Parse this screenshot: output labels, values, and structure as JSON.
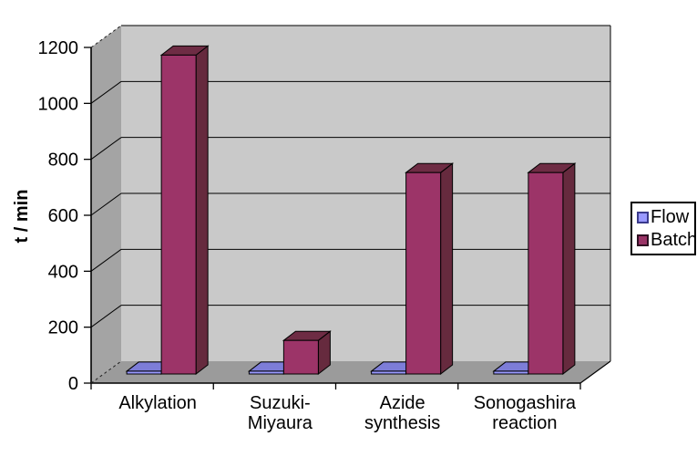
{
  "chart_data": {
    "type": "bar",
    "style": "3d-clustered-column",
    "title": "",
    "xlabel": "",
    "ylabel": "t / min",
    "ylim": [
      0,
      1200
    ],
    "yticks": [
      0,
      200,
      400,
      600,
      800,
      1000,
      1200
    ],
    "grid": true,
    "legend_position": "right",
    "categories": [
      "Alkylation",
      "Suzuki-Miyaura",
      "Azide synthesis",
      "Sonogashira reaction"
    ],
    "category_label_lines": [
      [
        "Alkylation"
      ],
      [
        "Suzuki-",
        "Miyaura"
      ],
      [
        "Azide",
        "synthesis"
      ],
      [
        "Sonogashira",
        "reaction"
      ]
    ],
    "series": [
      {
        "name": "Flow",
        "values": [
          10,
          10,
          10,
          10
        ],
        "color": "#9999ff"
      },
      {
        "name": "Batch",
        "values": [
          1140,
          120,
          720,
          720
        ],
        "color": "#993366"
      }
    ]
  },
  "legend": {
    "items": [
      {
        "label": "Flow",
        "color": "#9999ff",
        "marker": "square"
      },
      {
        "label": "Batch",
        "color": "#993366",
        "marker": "square"
      }
    ]
  },
  "colors": {
    "background": "#ffffff",
    "back_wall": "#c9c9c9",
    "side_wall": "#a4a4a4",
    "floor": "#9b9b9b",
    "gridline": "#000000",
    "axis_line": "#000000",
    "text": "#000000",
    "flow_front": "#9999ff",
    "flow_top": "#7d7dd8",
    "flow_side": "#5f5fa6",
    "batch_front": "#9c3468",
    "batch_top": "#6e2c44",
    "batch_side": "#662a3e"
  }
}
